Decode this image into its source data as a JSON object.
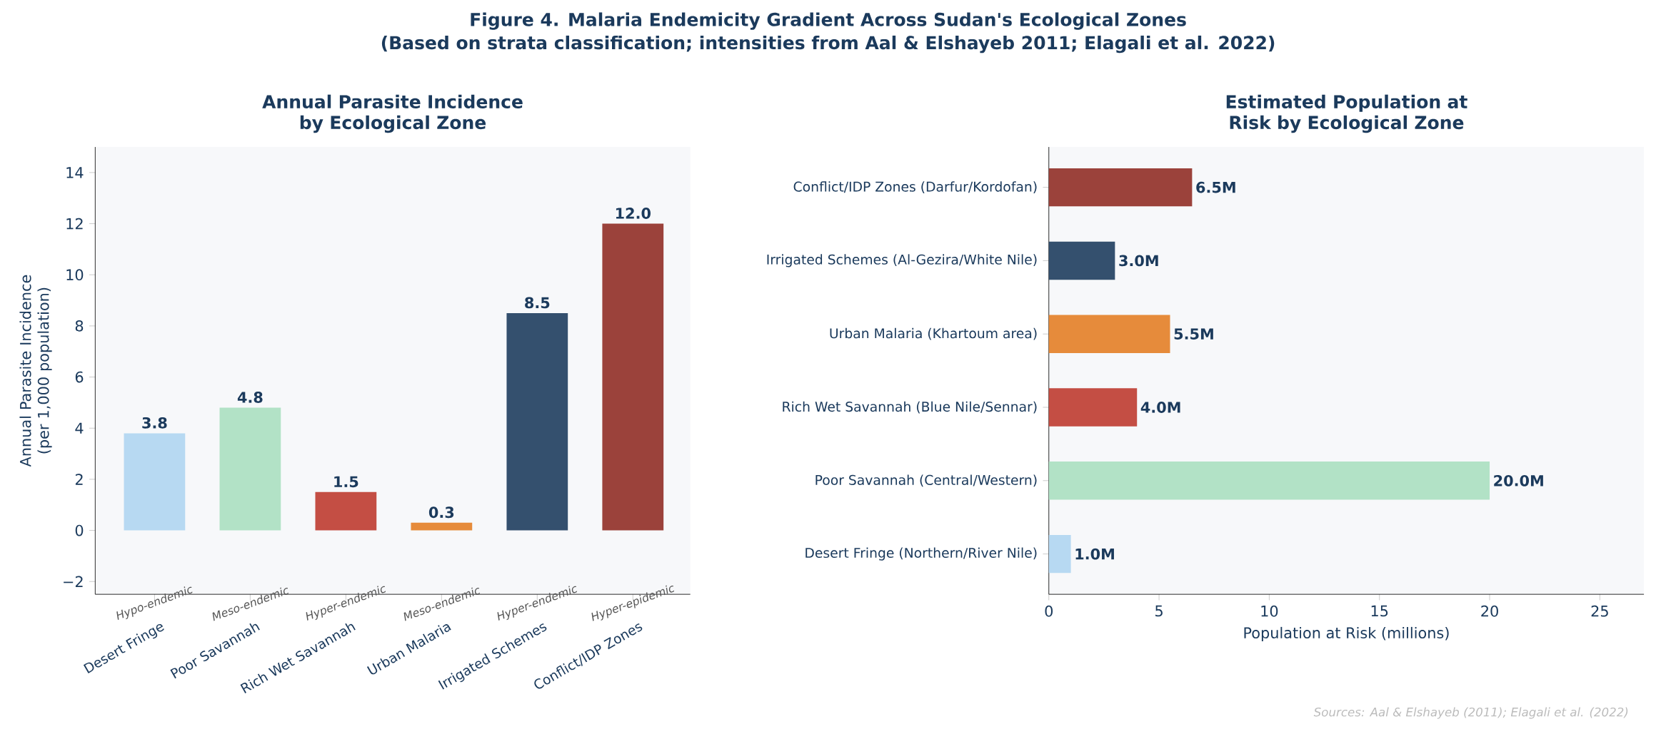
{
  "chart_data": [
    {
      "type": "bar",
      "title": "Annual Parasite Incidence by Ecological Zone",
      "ylabel": "Annual Parasite Incidence (per 1,000 population)",
      "categories": [
        "Desert Fringe",
        "Poor Savannah",
        "Rich Wet Savannah",
        "Urban Malaria",
        "Irrigated Schemes",
        "Conflict/IDP Zones"
      ],
      "values": [
        3.8,
        4.8,
        1.5,
        0.3,
        8.5,
        12.0
      ],
      "colors": [
        "#b7d9f2",
        "#b2e2c6",
        "#c44e44",
        "#e68b3b",
        "#34506e",
        "#9b423b"
      ],
      "value_labels": [
        "3.8",
        "4.8",
        "1.5",
        "0.3",
        "8.5",
        "12.0"
      ],
      "ylim": [
        -2.5,
        15
      ],
      "yticks": [
        {
          "value": -2,
          "label": "−2"
        },
        0,
        2,
        4,
        6,
        8,
        10,
        12,
        14
      ],
      "annotations": [
        "Figure 4. Malaria Endemicity Gradient Across Sudan's Ecological Zones",
        "(Based on strata classification; intensities from Aal & Elshayeb 2011; Elagali et al. 2022)",
        "Hypo-endemic",
        "Meso-endemic",
        "Hyper-endemic",
        "Meso-endemic",
        "Hyper-endemic",
        "Hyper-epidemic"
      ]
    },
    {
      "type": "bar",
      "orientation": "horizontal",
      "title": "Estimated Population at Risk by Ecological Zone",
      "xlabel": "Population at Risk (millions)",
      "categories": [
        "Conflict/IDP Zones (Darfur/Kordofan)",
        "Irrigated Schemes (Al-Gezira/White Nile)",
        "Urban Malaria (Khartoum area)",
        "Rich Wet Savannah (Blue Nile/Sennar)",
        "Poor Savannah (Central/Western)",
        "Desert Fringe (Northern/River Nile)"
      ],
      "values": [
        6.5,
        3.0,
        5.5,
        4.0,
        20.0,
        1.0
      ],
      "colors": [
        "#9b423b",
        "#34506e",
        "#e68b3b",
        "#c44e44",
        "#b2e2c6",
        "#b7d9f2"
      ],
      "value_labels": [
        "6.5M",
        "3.0M",
        "5.5M",
        "4.0M",
        "20.0M",
        "1.0M"
      ],
      "xlim": [
        0,
        27
      ],
      "xticks": [
        0,
        5,
        10,
        15,
        20,
        25
      ],
      "annotations": [
        "Sources: Aal & Elshayeb (2011); Elagali et al. (2022)"
      ]
    }
  ]
}
